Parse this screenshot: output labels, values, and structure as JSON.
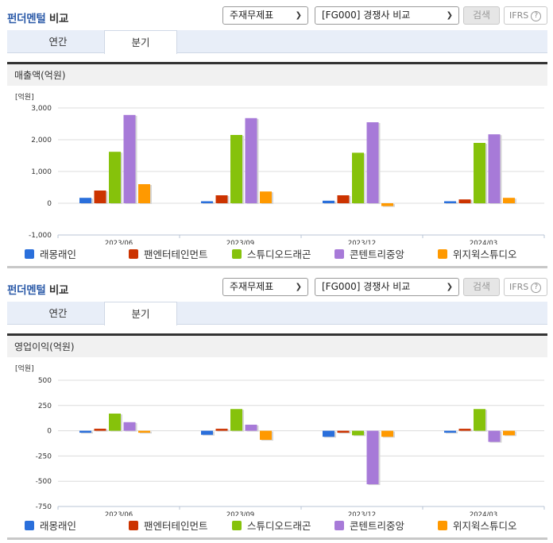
{
  "header": {
    "title_highlight": "펀더멘털",
    "title_rest": " 비교",
    "select1_value": "주재무제표",
    "select2_value": "[FG000] 경쟁사 비교",
    "search_label": "검색",
    "ifrs_label": "IFRS",
    "help_glyph": "?"
  },
  "tabs": [
    {
      "label": "연간",
      "active": false
    },
    {
      "label": "분기",
      "active": true
    }
  ],
  "unit_label": "[억원]",
  "legend": [
    {
      "name": "래몽래인",
      "color": "#2a6fdb"
    },
    {
      "name": "팬엔터테인먼트",
      "color": "#cc3300"
    },
    {
      "name": "스튜디오드래곤",
      "color": "#86c20b"
    },
    {
      "name": "콘텐트리중앙",
      "color": "#a77ad8"
    },
    {
      "name": "위지윅스튜디오",
      "color": "#ff9900"
    }
  ],
  "sections": [
    {
      "metric_label": "매출액(억원)"
    },
    {
      "metric_label": "영업이익(억원)"
    }
  ],
  "chart_data": [
    {
      "type": "bar",
      "title": "매출액(억원)",
      "ylabel": "[억원]",
      "xlabel": "",
      "categories": [
        "2023/06",
        "2023/09",
        "2023/12",
        "2024/03"
      ],
      "ylim": [
        -1000,
        3000
      ],
      "yticks": [
        3000,
        2000,
        1000,
        0,
        -1000
      ],
      "ytick_labels": [
        "3,000",
        "2,000",
        "1,000",
        "0",
        "-1,000"
      ],
      "grid": true,
      "legend_position": "bottom",
      "series": [
        {
          "name": "래몽래인",
          "color": "#2a6fdb",
          "values": [
            170,
            50,
            80,
            50
          ]
        },
        {
          "name": "팬엔터테인먼트",
          "color": "#cc3300",
          "values": [
            400,
            250,
            250,
            120
          ]
        },
        {
          "name": "스튜디오드래곤",
          "color": "#86c20b",
          "values": [
            1620,
            2150,
            1590,
            1900
          ]
        },
        {
          "name": "콘텐트리중앙",
          "color": "#a77ad8",
          "values": [
            2780,
            2680,
            2550,
            2170
          ]
        },
        {
          "name": "위지윅스튜디오",
          "color": "#ff9900",
          "values": [
            600,
            370,
            -90,
            170
          ]
        }
      ]
    },
    {
      "type": "bar",
      "title": "영업이익(억원)",
      "ylabel": "[억원]",
      "xlabel": "",
      "categories": [
        "2023/06",
        "2023/09",
        "2023/12",
        "2024/03"
      ],
      "ylim": [
        -750,
        500
      ],
      "yticks": [
        500,
        250,
        0,
        -250,
        -500,
        -750
      ],
      "ytick_labels": [
        "500",
        "250",
        "0",
        "-250",
        "-500",
        "-750"
      ],
      "grid": true,
      "legend_position": "bottom",
      "series": [
        {
          "name": "래몽래인",
          "color": "#2a6fdb",
          "values": [
            -10,
            -40,
            -60,
            -10
          ]
        },
        {
          "name": "팬엔터테인먼트",
          "color": "#cc3300",
          "values": [
            20,
            10,
            -10,
            5
          ]
        },
        {
          "name": "스튜디오드래곤",
          "color": "#86c20b",
          "values": [
            170,
            215,
            -45,
            215
          ]
        },
        {
          "name": "콘텐트리중앙",
          "color": "#a77ad8",
          "values": [
            85,
            60,
            -530,
            -110
          ]
        },
        {
          "name": "위지윅스튜디오",
          "color": "#ff9900",
          "values": [
            -10,
            -90,
            -60,
            -45
          ]
        }
      ]
    }
  ]
}
